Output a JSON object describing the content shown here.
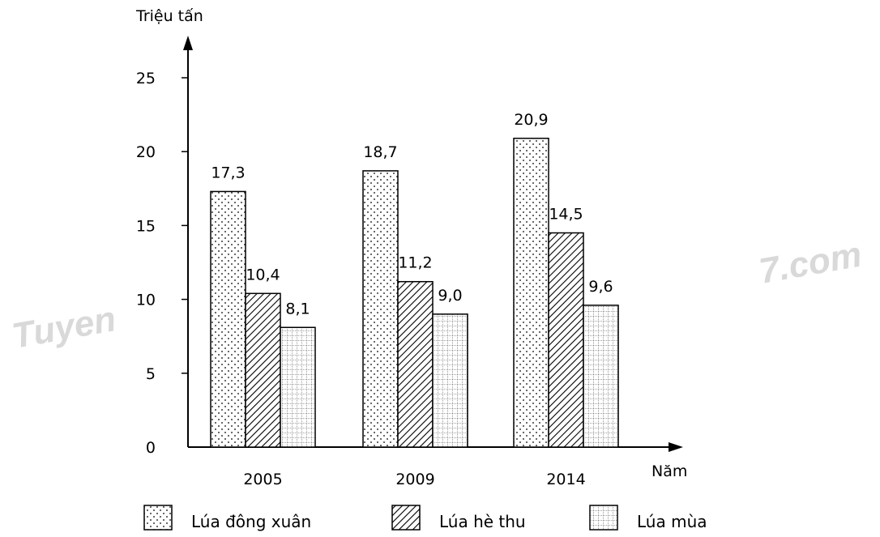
{
  "watermark": {
    "left": "Tuyen",
    "right": "7.com"
  },
  "colors": {
    "axis": "#000000",
    "bar_stroke": "#000000",
    "background": "#ffffff",
    "watermark": "#d9d9d9"
  },
  "chart_data": {
    "type": "bar",
    "title": "",
    "ylabel": "Triệu tấn",
    "xlabel": "Năm",
    "ylim": [
      0,
      25
    ],
    "yticks": [
      0,
      5,
      10,
      15,
      20,
      25
    ],
    "grid": false,
    "legend_position": "bottom",
    "categories": [
      "2005",
      "2009",
      "2014"
    ],
    "series": [
      {
        "name": "Lúa đông xuân",
        "pattern": "dots",
        "values": [
          17.3,
          18.7,
          20.9
        ],
        "labels": [
          "17,3",
          "18,7",
          "20,9"
        ]
      },
      {
        "name": "Lúa hè thu",
        "pattern": "hatch",
        "values": [
          10.4,
          11.2,
          14.5
        ],
        "labels": [
          "10,4",
          "11,2",
          "14,5"
        ]
      },
      {
        "name": "Lúa mùa",
        "pattern": "grid",
        "values": [
          8.1,
          9.0,
          9.6
        ],
        "labels": [
          "8,1",
          "9,0",
          "9,6"
        ]
      }
    ]
  }
}
